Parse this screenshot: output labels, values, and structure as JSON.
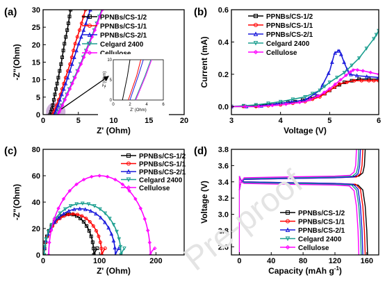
{
  "watermark": "Pre-proof",
  "chart_data": [
    {
      "panel": "(a)",
      "type": "line",
      "xlabel": "Z' (Ohm)",
      "ylabel": "-Z\"(Ohm)",
      "xlim": [
        0,
        20
      ],
      "ylim": [
        0,
        30
      ],
      "xticks": [
        "0",
        "5",
        "10",
        "15",
        "20"
      ],
      "yticks": [
        "0",
        "5",
        "10",
        "15",
        "20",
        "25",
        "30"
      ],
      "legend_position": "top-right",
      "series": [
        {
          "name": "PPNBs/CS-1/2",
          "color": "#000000",
          "marker": "square",
          "x": [
            1.0,
            1.3,
            1.7,
            2.1,
            2.6,
            3.0,
            3.5,
            3.9
          ],
          "y": [
            0,
            2,
            6,
            10,
            15,
            20,
            25,
            30
          ]
        },
        {
          "name": "PPNBs/CS-1/1",
          "color": "#ff0000",
          "marker": "circle",
          "x": [
            1.4,
            1.8,
            2.5,
            3.1,
            3.9,
            4.5,
            5.3,
            6.0
          ],
          "y": [
            0,
            2,
            6,
            10,
            15,
            20,
            25,
            30
          ]
        },
        {
          "name": "PPNBs/CS-2/1",
          "color": "#1a1adc",
          "marker": "triangle",
          "x": [
            1.6,
            2.0,
            2.7,
            3.4,
            4.2,
            5.0,
            5.9,
            6.7
          ],
          "y": [
            0,
            2,
            6,
            10,
            15,
            20,
            25,
            30
          ]
        },
        {
          "name": "Celgard 2400",
          "color": "#1a9e8f",
          "marker": "triangle-down",
          "x": [
            2.0,
            2.5,
            3.4,
            4.3,
            5.4,
            6.4,
            7.4,
            8.3
          ],
          "y": [
            0,
            2,
            6,
            10,
            15,
            20,
            25,
            30
          ]
        },
        {
          "name": "Cellulose",
          "color": "#ff00ff",
          "marker": "diamond",
          "x": [
            2.1,
            2.6,
            3.5,
            4.4,
            5.5,
            6.5,
            7.5,
            8.4
          ],
          "y": [
            0,
            2,
            6,
            10,
            15,
            20,
            25,
            30
          ]
        }
      ],
      "inset": {
        "xlabel": "Z' (Ohm)",
        "ylabel": "-Z\"(Ohm)",
        "xlim": [
          0,
          6
        ],
        "ylim": [
          0,
          10
        ],
        "xticks": [
          "0",
          "2",
          "4",
          "6"
        ],
        "yticks": [
          "0",
          "5",
          "10"
        ],
        "series": [
          {
            "name": "PPNBs/CS-1/2",
            "x": [
              1.1,
              1.4,
              1.7,
              2.0
            ],
            "y": [
              0,
              3,
              6,
              10
            ]
          },
          {
            "name": "PPNBs/CS-1/1",
            "x": [
              1.8,
              2.3,
              2.8,
              3.3
            ],
            "y": [
              0,
              3,
              6,
              10
            ]
          },
          {
            "name": "PPNBs/CS-2/1",
            "x": [
              2.0,
              2.5,
              3.0,
              3.6
            ],
            "y": [
              0,
              3,
              6,
              10
            ]
          },
          {
            "name": "Celgard 2400",
            "x": [
              2.6,
              3.2,
              3.8,
              4.5
            ],
            "y": [
              0,
              3,
              6,
              10
            ]
          },
          {
            "name": "Cellulose",
            "x": [
              2.7,
              3.3,
              3.9,
              4.6
            ],
            "y": [
              0,
              3,
              6,
              10
            ]
          }
        ]
      }
    },
    {
      "panel": "(b)",
      "type": "line",
      "xlabel": "Voltage (V)",
      "ylabel": "Current (mA)",
      "xlim": [
        3,
        6
      ],
      "ylim": [
        -0.05,
        0.6
      ],
      "xticks": [
        "3",
        "4",
        "5",
        "6"
      ],
      "yticks": [
        "0.0",
        "0.2",
        "0.4",
        "0.6"
      ],
      "legend_position": "top-left",
      "series": [
        {
          "name": "PPNBs/CS-1/2",
          "color": "#000000",
          "marker": "square",
          "x": [
            3.0,
            3.5,
            4.0,
            4.3,
            4.6,
            4.9,
            5.1,
            5.3,
            5.6,
            6.0
          ],
          "y": [
            0.0,
            0.005,
            0.02,
            0.03,
            0.05,
            0.08,
            0.12,
            0.15,
            0.17,
            0.17
          ]
        },
        {
          "name": "PPNBs/CS-1/1",
          "color": "#ff0000",
          "marker": "circle",
          "x": [
            3.0,
            3.5,
            4.0,
            4.5,
            4.8,
            5.0,
            5.2,
            5.5,
            5.8,
            6.0
          ],
          "y": [
            0.0,
            0.0,
            0.01,
            0.03,
            0.06,
            0.1,
            0.14,
            0.16,
            0.16,
            0.16
          ]
        },
        {
          "name": "PPNBs/CS-2/1",
          "color": "#1a1adc",
          "marker": "triangle",
          "x": [
            3.0,
            3.5,
            4.0,
            4.5,
            4.8,
            5.0,
            5.1,
            5.2,
            5.3,
            5.4,
            5.6,
            6.0
          ],
          "y": [
            0.0,
            0.0,
            0.02,
            0.04,
            0.1,
            0.22,
            0.33,
            0.35,
            0.27,
            0.2,
            0.19,
            0.18
          ]
        },
        {
          "name": "Celgard 2400",
          "color": "#1a9e8f",
          "marker": "triangle-down",
          "x": [
            3.0,
            3.5,
            4.0,
            4.5,
            4.8,
            5.0,
            5.3,
            5.6,
            5.9,
            6.0
          ],
          "y": [
            0.0,
            0.01,
            0.03,
            0.06,
            0.1,
            0.15,
            0.21,
            0.3,
            0.42,
            0.47
          ]
        },
        {
          "name": "Cellulose",
          "color": "#ff00ff",
          "marker": "diamond",
          "x": [
            3.0,
            3.5,
            4.0,
            4.5,
            4.8,
            5.0,
            5.2,
            5.4,
            5.5,
            5.7,
            6.0
          ],
          "y": [
            0.0,
            0.0,
            0.01,
            0.03,
            0.07,
            0.11,
            0.16,
            0.21,
            0.23,
            0.22,
            0.2
          ]
        }
      ]
    },
    {
      "panel": "(c)",
      "type": "line",
      "xlabel": "Z' (Ohm)",
      "ylabel": "-Z\"(Ohm)",
      "xlim": [
        0,
        250
      ],
      "ylim": [
        0,
        80
      ],
      "xticks": [
        "0",
        "100",
        "200"
      ],
      "yticks": [
        "0",
        "20",
        "40",
        "60",
        "80"
      ],
      "legend_position": "top-right",
      "series": [
        {
          "name": "PPNBs/CS-1/2",
          "color": "#000000",
          "marker": "square",
          "center": 46,
          "radius": 44,
          "peak": 31,
          "tail": 6
        },
        {
          "name": "PPNBs/CS-1/1",
          "color": "#ff0000",
          "marker": "circle",
          "center": 53,
          "radius": 51,
          "peak": 31,
          "tail": 6
        },
        {
          "name": "PPNBs/CS-2/1",
          "color": "#1a1adc",
          "marker": "triangle",
          "center": 65,
          "radius": 63,
          "peak": 35,
          "tail": 6
        },
        {
          "name": "Celgard 2400",
          "color": "#1a9e8f",
          "marker": "triangle-down",
          "center": 70,
          "radius": 68,
          "peak": 39,
          "tail": 6
        },
        {
          "name": "Cellulose",
          "color": "#ff00ff",
          "marker": "diamond",
          "center": 100,
          "radius": 90,
          "peak": 60,
          "tail": 8
        }
      ]
    },
    {
      "panel": "(d)",
      "type": "line",
      "xlabel": "Capacity (mAh g⁻¹)",
      "ylabel": "Voltage (V)",
      "xlim": [
        -10,
        175
      ],
      "ylim": [
        2.5,
        3.8
      ],
      "xticks": [
        "0",
        "40",
        "80",
        "120",
        "160"
      ],
      "yticks": [
        "2.6",
        "2.8",
        "3.0",
        "3.2",
        "3.4",
        "3.6",
        "3.8"
      ],
      "legend_position": "bottom-right",
      "series": [
        {
          "name": "PPNBs/CS-1/2",
          "color": "#000000",
          "marker": "square",
          "charge_end": 158,
          "discharge_end": 161,
          "charge_plateau": 3.45,
          "discharge_plateau": 3.38
        },
        {
          "name": "PPNBs/CS-1/1",
          "color": "#ff0000",
          "marker": "circle",
          "charge_end": 155,
          "discharge_end": 158,
          "charge_plateau": 3.44,
          "discharge_plateau": 3.39
        },
        {
          "name": "PPNBs/CS-2/1",
          "color": "#1a1adc",
          "marker": "triangle",
          "charge_end": 152,
          "discharge_end": 155,
          "charge_plateau": 3.44,
          "discharge_plateau": 3.39
        },
        {
          "name": "Celgard 2400",
          "color": "#1a9e8f",
          "marker": "triangle-down",
          "charge_end": 150,
          "discharge_end": 153,
          "charge_plateau": 3.45,
          "discharge_plateau": 3.38
        },
        {
          "name": "Cellulose",
          "color": "#ff00ff",
          "marker": "diamond",
          "charge_end": 147,
          "discharge_end": 150,
          "charge_plateau": 3.46,
          "discharge_plateau": 3.37
        }
      ]
    }
  ]
}
